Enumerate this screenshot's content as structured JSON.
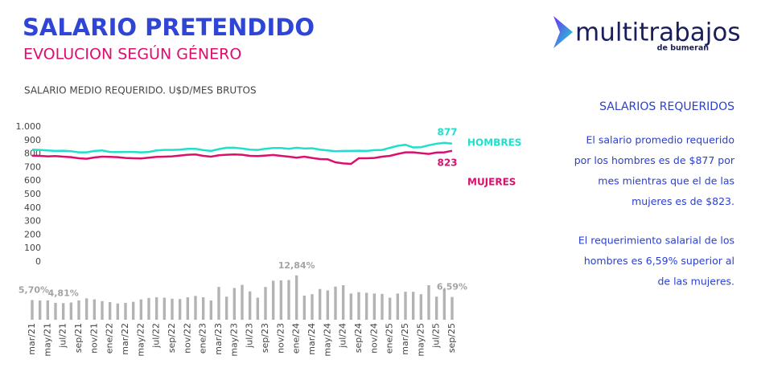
{
  "header": {
    "title": "SALARIO PRETENDIDO",
    "subtitle": "EVOLUCION SEGÚN GÉNERO"
  },
  "logo": {
    "name": "multitrabajos",
    "tagline": "de bumeran"
  },
  "panel": {
    "heading": "SALARIOS REQUERIDOS",
    "paragraphs": [
      [
        "El salario promedio requerido",
        "por los hombres es de $877 por",
        "mes mientras que el de las",
        "mujeres es de $823."
      ],
      [
        "El requerimiento salarial de los",
        "hombres es 6,59% superior al",
        "de las mujeres."
      ]
    ]
  },
  "chart_data": [
    {
      "type": "line",
      "title": "SALARIO MEDIO REQUERIDO. U$D/MES BRUTOS",
      "ylim": [
        0,
        1000
      ],
      "yticks": [
        0,
        100,
        200,
        300,
        400,
        500,
        600,
        700,
        800,
        900,
        {
          "value": 1000,
          "label": "1.000"
        }
      ],
      "series": [
        {
          "name": "HOMBRES",
          "color": "#1ee0cc",
          "values": [
            832,
            830,
            826,
            822,
            824,
            820,
            812,
            812,
            822,
            826,
            815,
            814,
            815,
            815,
            812,
            815,
            826,
            830,
            830,
            832,
            838,
            838,
            828,
            822,
            836,
            846,
            846,
            840,
            832,
            830,
            838,
            844,
            844,
            838,
            846,
            840,
            842,
            832,
            826,
            820,
            822,
            822,
            824,
            822,
            828,
            830,
            845,
            860,
            868,
            848,
            850,
            864,
            876,
            882,
            877
          ]
        },
        {
          "name": "MUJERES",
          "color": "#dc0f6e",
          "values": [
            787,
            786,
            782,
            784,
            780,
            776,
            768,
            764,
            774,
            780,
            778,
            776,
            770,
            768,
            766,
            772,
            778,
            780,
            782,
            788,
            794,
            796,
            786,
            780,
            790,
            794,
            796,
            794,
            786,
            784,
            788,
            792,
            786,
            780,
            772,
            780,
            770,
            762,
            760,
            738,
            730,
            726,
            768,
            768,
            770,
            780,
            786,
            800,
            812,
            812,
            806,
            800,
            810,
            812,
            823
          ]
        }
      ]
    },
    {
      "type": "bar",
      "color": "#b3b3b3",
      "categories": [
        "mar/21",
        null,
        "may/21",
        null,
        "jul/21",
        null,
        "sep/21",
        null,
        "nov/21",
        null,
        "ene/22",
        null,
        "mar/22",
        null,
        "may/22",
        null,
        "jul/22",
        null,
        "sep/22",
        null,
        "nov/22",
        null,
        "ene/23",
        null,
        "mar/23",
        null,
        "may/23",
        null,
        "jul/23",
        null,
        "sep/23",
        null,
        "nov/23",
        null,
        "ene/24",
        null,
        "mar/24",
        null,
        "may/24",
        null,
        "jul/24",
        null,
        "sep/24",
        null,
        "nov/24",
        null,
        "ene/25",
        null,
        "mar/25",
        null,
        "may/25",
        null,
        "jul/25",
        null,
        "sep/25"
      ],
      "values": [
        5.7,
        5.6,
        5.6,
        4.9,
        4.81,
        5.0,
        5.6,
        6.2,
        5.9,
        5.4,
        5.1,
        4.7,
        4.9,
        5.2,
        5.9,
        6.3,
        6.5,
        6.4,
        6.1,
        6.0,
        6.5,
        6.9,
        6.5,
        5.6,
        9.5,
        6.7,
        9.2,
        10.1,
        8.2,
        6.4,
        9.5,
        11.3,
        11.4,
        11.5,
        12.84,
        7.0,
        7.4,
        8.9,
        8.5,
        9.6,
        10.0,
        7.6,
        8.0,
        7.8,
        7.6,
        7.5,
        6.4,
        7.6,
        8.1,
        8.1,
        7.4,
        10.0,
        6.7,
        8.9,
        6.59
      ],
      "value_labels": [
        "5,70%",
        null,
        null,
        null,
        "4,81%",
        null,
        null,
        null,
        null,
        null,
        null,
        null,
        null,
        null,
        null,
        null,
        null,
        null,
        null,
        null,
        null,
        null,
        null,
        null,
        null,
        null,
        null,
        null,
        null,
        null,
        null,
        null,
        null,
        null,
        "12,84%",
        null,
        null,
        null,
        null,
        null,
        null,
        null,
        null,
        null,
        null,
        null,
        null,
        null,
        null,
        null,
        null,
        null,
        null,
        null,
        "6,59%"
      ]
    }
  ]
}
